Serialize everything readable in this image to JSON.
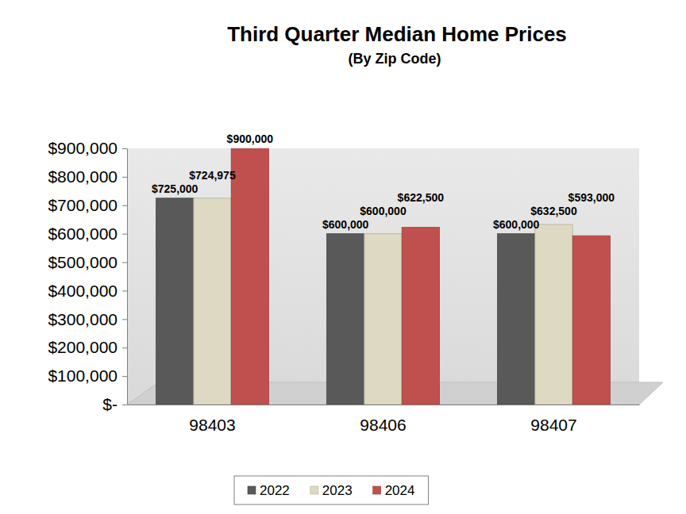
{
  "chart_data": {
    "type": "bar",
    "title": "Third Quarter Median Home Prices",
    "subtitle": "(By Zip Code)",
    "categories": [
      "98403",
      "98406",
      "98407"
    ],
    "series": [
      {
        "name": "2022",
        "color": "#595959",
        "values": [
          725000,
          600000,
          600000
        ],
        "value_labels": [
          "$725,000",
          "$600,000",
          "$600,000"
        ]
      },
      {
        "name": "2023",
        "color": "#ddd9c3",
        "values": [
          724975,
          600000,
          632500
        ],
        "value_labels": [
          "$724,975",
          "$600,000",
          "$632,500"
        ]
      },
      {
        "name": "2024",
        "color": "#c0504d",
        "values": [
          900000,
          622500,
          593000
        ],
        "value_labels": [
          "$900,000",
          "$622,500",
          "$593,000"
        ]
      }
    ],
    "ylim": [
      0,
      900000
    ],
    "yticks": [
      {
        "value": 0,
        "label": "$-"
      },
      {
        "value": 100000,
        "label": "$100,000"
      },
      {
        "value": 200000,
        "label": "$200,000"
      },
      {
        "value": 300000,
        "label": "$300,000"
      },
      {
        "value": 400000,
        "label": "$400,000"
      },
      {
        "value": 500000,
        "label": "$500,000"
      },
      {
        "value": 600000,
        "label": "$600,000"
      },
      {
        "value": 700000,
        "label": "$700,000"
      },
      {
        "value": 800000,
        "label": "$800,000"
      },
      {
        "value": 900000,
        "label": "$900,000"
      }
    ],
    "grid": false,
    "data_labels": true,
    "legend": "bottom"
  }
}
